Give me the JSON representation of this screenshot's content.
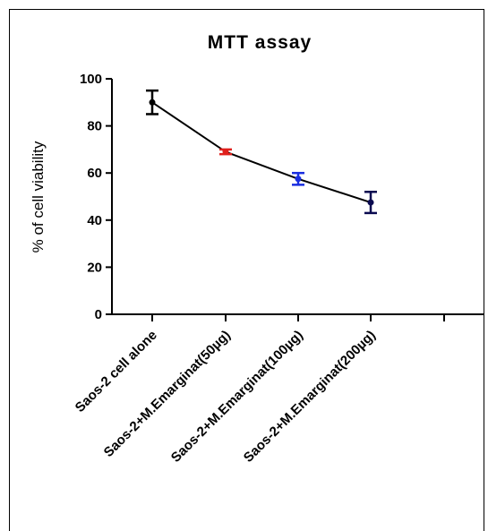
{
  "chart_data": {
    "type": "line",
    "title": "MTT assay",
    "ylabel": "% of cell viability",
    "xlabel": "",
    "ylim": [
      0,
      100
    ],
    "yticks": [
      0,
      20,
      40,
      60,
      80,
      100
    ],
    "categories": [
      "Saos-2 cell alone",
      "Saos-2+M.Emarginat(50µg)",
      "Saos-2+M.Emarginat(100µg)",
      "Saos-2+M.Emarginat(200µg)"
    ],
    "series": [
      {
        "values": [
          90,
          69,
          57.5,
          47.5
        ],
        "errors": [
          5,
          1,
          2.5,
          4.5
        ],
        "point_colors": [
          "#000000",
          "#e0201c",
          "#1a2ee0",
          "#0a0a50"
        ]
      }
    ],
    "grid": false,
    "legend": "none"
  }
}
